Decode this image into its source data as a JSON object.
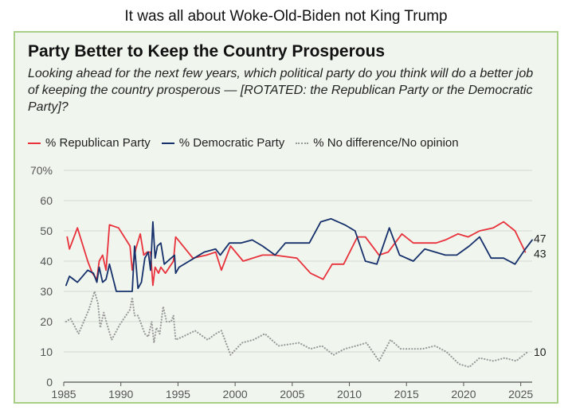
{
  "caption": "It was all about Woke-Old-Biden not King Trump",
  "colors": {
    "republican": "#e8323c",
    "democratic": "#16306b",
    "none": "#9a9a9a",
    "border": "#a9cf86",
    "background": "#f0f5ee"
  },
  "chart_data": {
    "type": "line",
    "title": "Party Better to Keep the Country Prosperous",
    "subtitle": "Looking ahead for the next few years, which political party do you think will do a better job of keeping the country prosperous — [ROTATED: the Republican Party or the Democratic Party]?",
    "xlabel": "",
    "ylabel": "",
    "xlim": [
      1985,
      2026
    ],
    "ylim": [
      0,
      70
    ],
    "x_ticks": [
      1985,
      1990,
      1995,
      2000,
      2005,
      2010,
      2015,
      2020,
      2025
    ],
    "y_ticks": [
      0,
      10,
      20,
      30,
      40,
      50,
      60,
      70
    ],
    "y_tick_labels": [
      "0",
      "10",
      "20",
      "30",
      "40",
      "50",
      "60",
      "70%"
    ],
    "grid": true,
    "legend_position": "top-left",
    "series": [
      {
        "key": "republican",
        "name": "% Republican Party",
        "color": "#e8323c",
        "style": "solid",
        "end_label": "43",
        "points": [
          [
            1985.3,
            48
          ],
          [
            1985.5,
            44
          ],
          [
            1986.2,
            51
          ],
          [
            1987.1,
            40
          ],
          [
            1987.5,
            36
          ],
          [
            1987.9,
            34
          ],
          [
            1988.1,
            40
          ],
          [
            1988.4,
            42
          ],
          [
            1988.7,
            37
          ],
          [
            1989.0,
            52
          ],
          [
            1989.8,
            51
          ],
          [
            1990.8,
            45
          ],
          [
            1991.0,
            37
          ],
          [
            1991.3,
            44
          ],
          [
            1991.7,
            49
          ],
          [
            1992.0,
            42
          ],
          [
            1992.3,
            43
          ],
          [
            1992.6,
            43
          ],
          [
            1992.8,
            32
          ],
          [
            1993.0,
            38
          ],
          [
            1993.3,
            36
          ],
          [
            1993.5,
            38
          ],
          [
            1993.9,
            36
          ],
          [
            1994.6,
            40
          ],
          [
            1994.8,
            48
          ],
          [
            1996.3,
            41
          ],
          [
            1997.5,
            42
          ],
          [
            1998.3,
            43
          ],
          [
            1998.8,
            37
          ],
          [
            1999.6,
            45
          ],
          [
            2000.7,
            40
          ],
          [
            2002.4,
            42
          ],
          [
            2003.4,
            42
          ],
          [
            2005.4,
            41
          ],
          [
            2006.6,
            36
          ],
          [
            2007.7,
            34
          ],
          [
            2008.5,
            39
          ],
          [
            2009.5,
            39
          ],
          [
            2010.7,
            48
          ],
          [
            2011.4,
            48
          ],
          [
            2012.6,
            42
          ],
          [
            2013.4,
            43
          ],
          [
            2014.6,
            49
          ],
          [
            2015.6,
            46
          ],
          [
            2017.6,
            46
          ],
          [
            2018.4,
            47
          ],
          [
            2019.5,
            49
          ],
          [
            2020.4,
            48
          ],
          [
            2021.4,
            50
          ],
          [
            2022.6,
            51
          ],
          [
            2023.5,
            53
          ],
          [
            2024.5,
            50
          ],
          [
            2025.4,
            43
          ]
        ]
      },
      {
        "key": "democratic",
        "name": "% Democratic Party",
        "color": "#16306b",
        "style": "solid",
        "end_label": "47",
        "points": [
          [
            1985.2,
            32
          ],
          [
            1985.5,
            35
          ],
          [
            1986.2,
            33
          ],
          [
            1987.1,
            37
          ],
          [
            1987.6,
            36
          ],
          [
            1987.9,
            33
          ],
          [
            1988.1,
            38
          ],
          [
            1988.4,
            33
          ],
          [
            1988.7,
            34
          ],
          [
            1989.0,
            39
          ],
          [
            1989.6,
            30
          ],
          [
            1990.6,
            30
          ],
          [
            1991.0,
            30
          ],
          [
            1991.2,
            45
          ],
          [
            1991.5,
            31
          ],
          [
            1991.8,
            33
          ],
          [
            1992.1,
            41
          ],
          [
            1992.4,
            43
          ],
          [
            1992.6,
            37
          ],
          [
            1992.8,
            53
          ],
          [
            1993.0,
            41
          ],
          [
            1993.2,
            45
          ],
          [
            1993.5,
            46
          ],
          [
            1993.8,
            39
          ],
          [
            1994.7,
            42
          ],
          [
            1994.8,
            36
          ],
          [
            1995.1,
            38
          ],
          [
            1997.3,
            43
          ],
          [
            1998.3,
            44
          ],
          [
            1998.7,
            42
          ],
          [
            1999.5,
            46
          ],
          [
            2000.5,
            46
          ],
          [
            2001.5,
            47
          ],
          [
            2002.4,
            45
          ],
          [
            2003.5,
            42
          ],
          [
            2004.4,
            46
          ],
          [
            2005.4,
            46
          ],
          [
            2006.5,
            46
          ],
          [
            2007.5,
            53
          ],
          [
            2008.4,
            54
          ],
          [
            2009.6,
            52
          ],
          [
            2010.5,
            50
          ],
          [
            2011.4,
            40
          ],
          [
            2012.4,
            39
          ],
          [
            2013.5,
            51
          ],
          [
            2014.4,
            42
          ],
          [
            2015.6,
            40
          ],
          [
            2016.6,
            44
          ],
          [
            2018.4,
            42
          ],
          [
            2019.4,
            42
          ],
          [
            2020.5,
            45
          ],
          [
            2021.4,
            48
          ],
          [
            2022.4,
            41
          ],
          [
            2023.5,
            41
          ],
          [
            2024.5,
            39
          ],
          [
            2025.4,
            44
          ],
          [
            2026.0,
            47
          ]
        ]
      },
      {
        "key": "none",
        "name": "% No difference/No opinion",
        "color": "#9a9a9a",
        "style": "dotted",
        "end_label": "10",
        "points": [
          [
            1985.2,
            20
          ],
          [
            1985.6,
            21
          ],
          [
            1986.3,
            16
          ],
          [
            1987.2,
            24
          ],
          [
            1987.7,
            30
          ],
          [
            1988.0,
            26
          ],
          [
            1988.2,
            18
          ],
          [
            1988.5,
            23
          ],
          [
            1988.8,
            19
          ],
          [
            1989.2,
            14
          ],
          [
            1989.9,
            19
          ],
          [
            1990.8,
            24
          ],
          [
            1991.0,
            28
          ],
          [
            1991.2,
            22
          ],
          [
            1991.5,
            22
          ],
          [
            1991.8,
            19
          ],
          [
            1992.1,
            16
          ],
          [
            1992.4,
            15
          ],
          [
            1992.7,
            20
          ],
          [
            1992.9,
            13
          ],
          [
            1993.1,
            18
          ],
          [
            1993.4,
            16
          ],
          [
            1993.7,
            25
          ],
          [
            1994.0,
            20
          ],
          [
            1994.4,
            20
          ],
          [
            1994.6,
            22
          ],
          [
            1994.8,
            14
          ],
          [
            1995.4,
            15
          ],
          [
            1996.5,
            17
          ],
          [
            1997.6,
            14
          ],
          [
            1998.3,
            16
          ],
          [
            1998.8,
            17
          ],
          [
            1999.6,
            9
          ],
          [
            2000.6,
            13
          ],
          [
            2001.6,
            14
          ],
          [
            2002.6,
            16
          ],
          [
            2003.8,
            12
          ],
          [
            2005.6,
            13
          ],
          [
            2006.6,
            11
          ],
          [
            2007.6,
            12
          ],
          [
            2008.6,
            9
          ],
          [
            2009.6,
            11
          ],
          [
            2010.6,
            12
          ],
          [
            2011.5,
            13
          ],
          [
            2012.6,
            7
          ],
          [
            2013.6,
            14
          ],
          [
            2014.5,
            11
          ],
          [
            2016.4,
            11
          ],
          [
            2017.5,
            12
          ],
          [
            2018.5,
            10
          ],
          [
            2019.6,
            6
          ],
          [
            2020.5,
            5
          ],
          [
            2021.4,
            8
          ],
          [
            2022.6,
            7
          ],
          [
            2023.6,
            8
          ],
          [
            2024.6,
            7
          ],
          [
            2025.6,
            10
          ]
        ]
      }
    ]
  }
}
